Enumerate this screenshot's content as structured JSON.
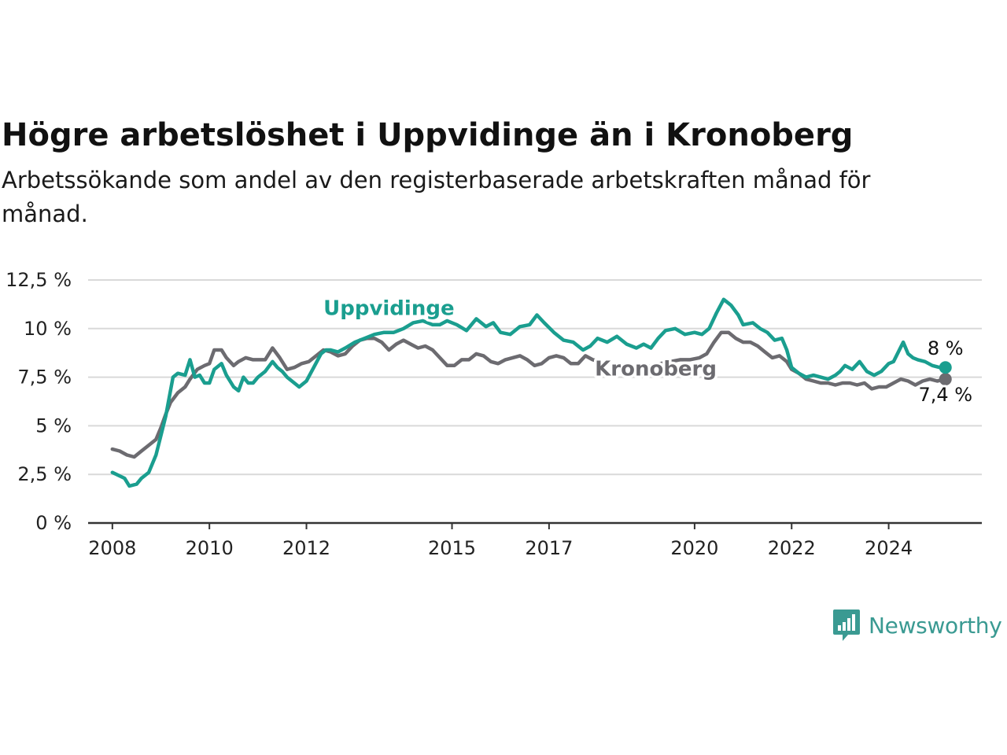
{
  "title": "Högre arbetslöshet i Uppvidinge än i Kronoberg",
  "subtitle": "Arbetssökande som andel av den registerbaserade arbetskraften månad för månad.",
  "brand": {
    "name": "Newsworthy"
  },
  "colors": {
    "uppvidinge": "#1a9e8f",
    "kronoberg": "#6c6b70",
    "grid": "#d9d9d9",
    "axis": "#333333",
    "brand": "#3a9a92"
  },
  "chart_data": {
    "type": "line",
    "title": "Högre arbetslöshet i Uppvidinge än i Kronoberg",
    "subtitle": "Arbetssökande som andel av den registerbaserade arbetskraften månad för månad.",
    "xlabel": "",
    "ylabel": "",
    "x_range": [
      2007.5,
      2025.92
    ],
    "ylim": [
      0,
      12.5
    ],
    "y_ticks": [
      0,
      2.5,
      5,
      7.5,
      10,
      12.5
    ],
    "y_tick_labels": [
      "0 %",
      "2,5 %",
      "5 %",
      "7,5 %",
      "10 %",
      "12,5 %"
    ],
    "x_ticks": [
      2008,
      2010,
      2012,
      2015,
      2017,
      2020,
      2022,
      2024
    ],
    "x_tick_labels": [
      "2008",
      "2010",
      "2012",
      "2015",
      "2017",
      "2020",
      "2022",
      "2024"
    ],
    "grid": true,
    "legend": "inline labels",
    "series": [
      {
        "name": "Uppvidinge",
        "color": "#1a9e8f",
        "end_label": "8 %",
        "points": [
          [
            2008.0,
            2.6
          ],
          [
            2008.25,
            2.3
          ],
          [
            2008.35,
            1.9
          ],
          [
            2008.5,
            2.0
          ],
          [
            2008.6,
            2.3
          ],
          [
            2008.75,
            2.6
          ],
          [
            2008.9,
            3.5
          ],
          [
            2009.0,
            4.5
          ],
          [
            2009.1,
            5.5
          ],
          [
            2009.25,
            7.5
          ],
          [
            2009.35,
            7.7
          ],
          [
            2009.5,
            7.6
          ],
          [
            2009.6,
            8.4
          ],
          [
            2009.7,
            7.5
          ],
          [
            2009.8,
            7.6
          ],
          [
            2009.9,
            7.2
          ],
          [
            2010.0,
            7.2
          ],
          [
            2010.1,
            7.9
          ],
          [
            2010.25,
            8.2
          ],
          [
            2010.35,
            7.6
          ],
          [
            2010.5,
            7.0
          ],
          [
            2010.6,
            6.8
          ],
          [
            2010.7,
            7.5
          ],
          [
            2010.8,
            7.2
          ],
          [
            2010.9,
            7.2
          ],
          [
            2011.0,
            7.5
          ],
          [
            2011.15,
            7.8
          ],
          [
            2011.3,
            8.3
          ],
          [
            2011.4,
            8.0
          ],
          [
            2011.5,
            7.8
          ],
          [
            2011.6,
            7.5
          ],
          [
            2011.7,
            7.3
          ],
          [
            2011.85,
            7.0
          ],
          [
            2012.0,
            7.3
          ],
          [
            2012.15,
            8.0
          ],
          [
            2012.3,
            8.7
          ],
          [
            2012.4,
            8.9
          ],
          [
            2012.5,
            8.9
          ],
          [
            2012.65,
            8.8
          ],
          [
            2012.8,
            9.0
          ],
          [
            2013.0,
            9.3
          ],
          [
            2013.2,
            9.5
          ],
          [
            2013.4,
            9.7
          ],
          [
            2013.6,
            9.8
          ],
          [
            2013.8,
            9.8
          ],
          [
            2014.0,
            10.0
          ],
          [
            2014.2,
            10.3
          ],
          [
            2014.4,
            10.4
          ],
          [
            2014.6,
            10.2
          ],
          [
            2014.75,
            10.2
          ],
          [
            2014.9,
            10.4
          ],
          [
            2015.1,
            10.2
          ],
          [
            2015.3,
            9.9
          ],
          [
            2015.5,
            10.5
          ],
          [
            2015.7,
            10.1
          ],
          [
            2015.85,
            10.3
          ],
          [
            2016.0,
            9.8
          ],
          [
            2016.2,
            9.7
          ],
          [
            2016.4,
            10.1
          ],
          [
            2016.6,
            10.2
          ],
          [
            2016.75,
            10.7
          ],
          [
            2016.9,
            10.3
          ],
          [
            2017.1,
            9.8
          ],
          [
            2017.3,
            9.4
          ],
          [
            2017.5,
            9.3
          ],
          [
            2017.7,
            8.9
          ],
          [
            2017.85,
            9.1
          ],
          [
            2018.0,
            9.5
          ],
          [
            2018.2,
            9.3
          ],
          [
            2018.4,
            9.6
          ],
          [
            2018.6,
            9.2
          ],
          [
            2018.8,
            9.0
          ],
          [
            2018.95,
            9.2
          ],
          [
            2019.1,
            9.0
          ],
          [
            2019.25,
            9.5
          ],
          [
            2019.4,
            9.9
          ],
          [
            2019.6,
            10.0
          ],
          [
            2019.8,
            9.7
          ],
          [
            2020.0,
            9.8
          ],
          [
            2020.15,
            9.7
          ],
          [
            2020.3,
            10.0
          ],
          [
            2020.45,
            10.8
          ],
          [
            2020.6,
            11.5
          ],
          [
            2020.75,
            11.2
          ],
          [
            2020.9,
            10.7
          ],
          [
            2021.0,
            10.2
          ],
          [
            2021.2,
            10.3
          ],
          [
            2021.35,
            10.0
          ],
          [
            2021.5,
            9.8
          ],
          [
            2021.65,
            9.4
          ],
          [
            2021.8,
            9.5
          ],
          [
            2021.9,
            8.9
          ],
          [
            2022.0,
            8.0
          ],
          [
            2022.15,
            7.7
          ],
          [
            2022.3,
            7.5
          ],
          [
            2022.45,
            7.6
          ],
          [
            2022.6,
            7.5
          ],
          [
            2022.75,
            7.4
          ],
          [
            2022.9,
            7.6
          ],
          [
            2023.0,
            7.8
          ],
          [
            2023.1,
            8.1
          ],
          [
            2023.25,
            7.9
          ],
          [
            2023.4,
            8.3
          ],
          [
            2023.55,
            7.8
          ],
          [
            2023.7,
            7.6
          ],
          [
            2023.85,
            7.8
          ],
          [
            2024.0,
            8.2
          ],
          [
            2024.1,
            8.3
          ],
          [
            2024.2,
            8.8
          ],
          [
            2024.3,
            9.3
          ],
          [
            2024.4,
            8.7
          ],
          [
            2024.5,
            8.5
          ],
          [
            2024.6,
            8.4
          ],
          [
            2024.75,
            8.3
          ],
          [
            2024.9,
            8.1
          ],
          [
            2025.05,
            8.0
          ],
          [
            2025.17,
            8.0
          ]
        ]
      },
      {
        "name": "Kronoberg",
        "color": "#6c6b70",
        "end_label": "7,4 %",
        "points": [
          [
            2008.0,
            3.8
          ],
          [
            2008.15,
            3.7
          ],
          [
            2008.3,
            3.5
          ],
          [
            2008.45,
            3.4
          ],
          [
            2008.6,
            3.7
          ],
          [
            2008.75,
            4.0
          ],
          [
            2008.9,
            4.3
          ],
          [
            2009.0,
            4.9
          ],
          [
            2009.1,
            5.6
          ],
          [
            2009.2,
            6.2
          ],
          [
            2009.35,
            6.7
          ],
          [
            2009.5,
            7.0
          ],
          [
            2009.6,
            7.4
          ],
          [
            2009.75,
            7.9
          ],
          [
            2009.9,
            8.1
          ],
          [
            2010.0,
            8.2
          ],
          [
            2010.1,
            8.9
          ],
          [
            2010.25,
            8.9
          ],
          [
            2010.35,
            8.5
          ],
          [
            2010.5,
            8.1
          ],
          [
            2010.6,
            8.3
          ],
          [
            2010.75,
            8.5
          ],
          [
            2010.9,
            8.4
          ],
          [
            2011.0,
            8.4
          ],
          [
            2011.15,
            8.4
          ],
          [
            2011.3,
            9.0
          ],
          [
            2011.45,
            8.5
          ],
          [
            2011.6,
            7.9
          ],
          [
            2011.75,
            8.0
          ],
          [
            2011.9,
            8.2
          ],
          [
            2012.05,
            8.3
          ],
          [
            2012.2,
            8.6
          ],
          [
            2012.35,
            8.9
          ],
          [
            2012.5,
            8.8
          ],
          [
            2012.65,
            8.6
          ],
          [
            2012.8,
            8.7
          ],
          [
            2012.95,
            9.1
          ],
          [
            2013.1,
            9.4
          ],
          [
            2013.25,
            9.5
          ],
          [
            2013.4,
            9.5
          ],
          [
            2013.55,
            9.3
          ],
          [
            2013.7,
            8.9
          ],
          [
            2013.85,
            9.2
          ],
          [
            2014.0,
            9.4
          ],
          [
            2014.15,
            9.2
          ],
          [
            2014.3,
            9.0
          ],
          [
            2014.45,
            9.1
          ],
          [
            2014.6,
            8.9
          ],
          [
            2014.75,
            8.5
          ],
          [
            2014.9,
            8.1
          ],
          [
            2015.05,
            8.1
          ],
          [
            2015.2,
            8.4
          ],
          [
            2015.35,
            8.4
          ],
          [
            2015.5,
            8.7
          ],
          [
            2015.65,
            8.6
          ],
          [
            2015.8,
            8.3
          ],
          [
            2015.95,
            8.2
          ],
          [
            2016.1,
            8.4
          ],
          [
            2016.25,
            8.5
          ],
          [
            2016.4,
            8.6
          ],
          [
            2016.55,
            8.4
          ],
          [
            2016.7,
            8.1
          ],
          [
            2016.85,
            8.2
          ],
          [
            2017.0,
            8.5
          ],
          [
            2017.15,
            8.6
          ],
          [
            2017.3,
            8.5
          ],
          [
            2017.45,
            8.2
          ],
          [
            2017.6,
            8.2
          ],
          [
            2017.75,
            8.6
          ],
          [
            2017.9,
            8.4
          ],
          [
            2018.1,
            8.3
          ],
          [
            2018.3,
            8.2
          ],
          [
            2018.5,
            8.1
          ],
          [
            2018.7,
            8.0
          ],
          [
            2018.9,
            7.9
          ],
          [
            2019.1,
            8.1
          ],
          [
            2019.3,
            8.2
          ],
          [
            2019.5,
            8.3
          ],
          [
            2019.7,
            8.4
          ],
          [
            2019.9,
            8.4
          ],
          [
            2020.1,
            8.5
          ],
          [
            2020.25,
            8.7
          ],
          [
            2020.4,
            9.3
          ],
          [
            2020.55,
            9.8
          ],
          [
            2020.7,
            9.8
          ],
          [
            2020.85,
            9.5
          ],
          [
            2021.0,
            9.3
          ],
          [
            2021.15,
            9.3
          ],
          [
            2021.3,
            9.1
          ],
          [
            2021.45,
            8.8
          ],
          [
            2021.6,
            8.5
          ],
          [
            2021.75,
            8.6
          ],
          [
            2021.9,
            8.3
          ],
          [
            2022.0,
            7.9
          ],
          [
            2022.15,
            7.7
          ],
          [
            2022.3,
            7.4
          ],
          [
            2022.45,
            7.3
          ],
          [
            2022.6,
            7.2
          ],
          [
            2022.75,
            7.2
          ],
          [
            2022.9,
            7.1
          ],
          [
            2023.05,
            7.2
          ],
          [
            2023.2,
            7.2
          ],
          [
            2023.35,
            7.1
          ],
          [
            2023.5,
            7.2
          ],
          [
            2023.65,
            6.9
          ],
          [
            2023.8,
            7.0
          ],
          [
            2023.95,
            7.0
          ],
          [
            2024.1,
            7.2
          ],
          [
            2024.25,
            7.4
          ],
          [
            2024.4,
            7.3
          ],
          [
            2024.55,
            7.1
          ],
          [
            2024.7,
            7.3
          ],
          [
            2024.85,
            7.4
          ],
          [
            2025.0,
            7.3
          ],
          [
            2025.17,
            7.4
          ]
        ]
      }
    ]
  }
}
